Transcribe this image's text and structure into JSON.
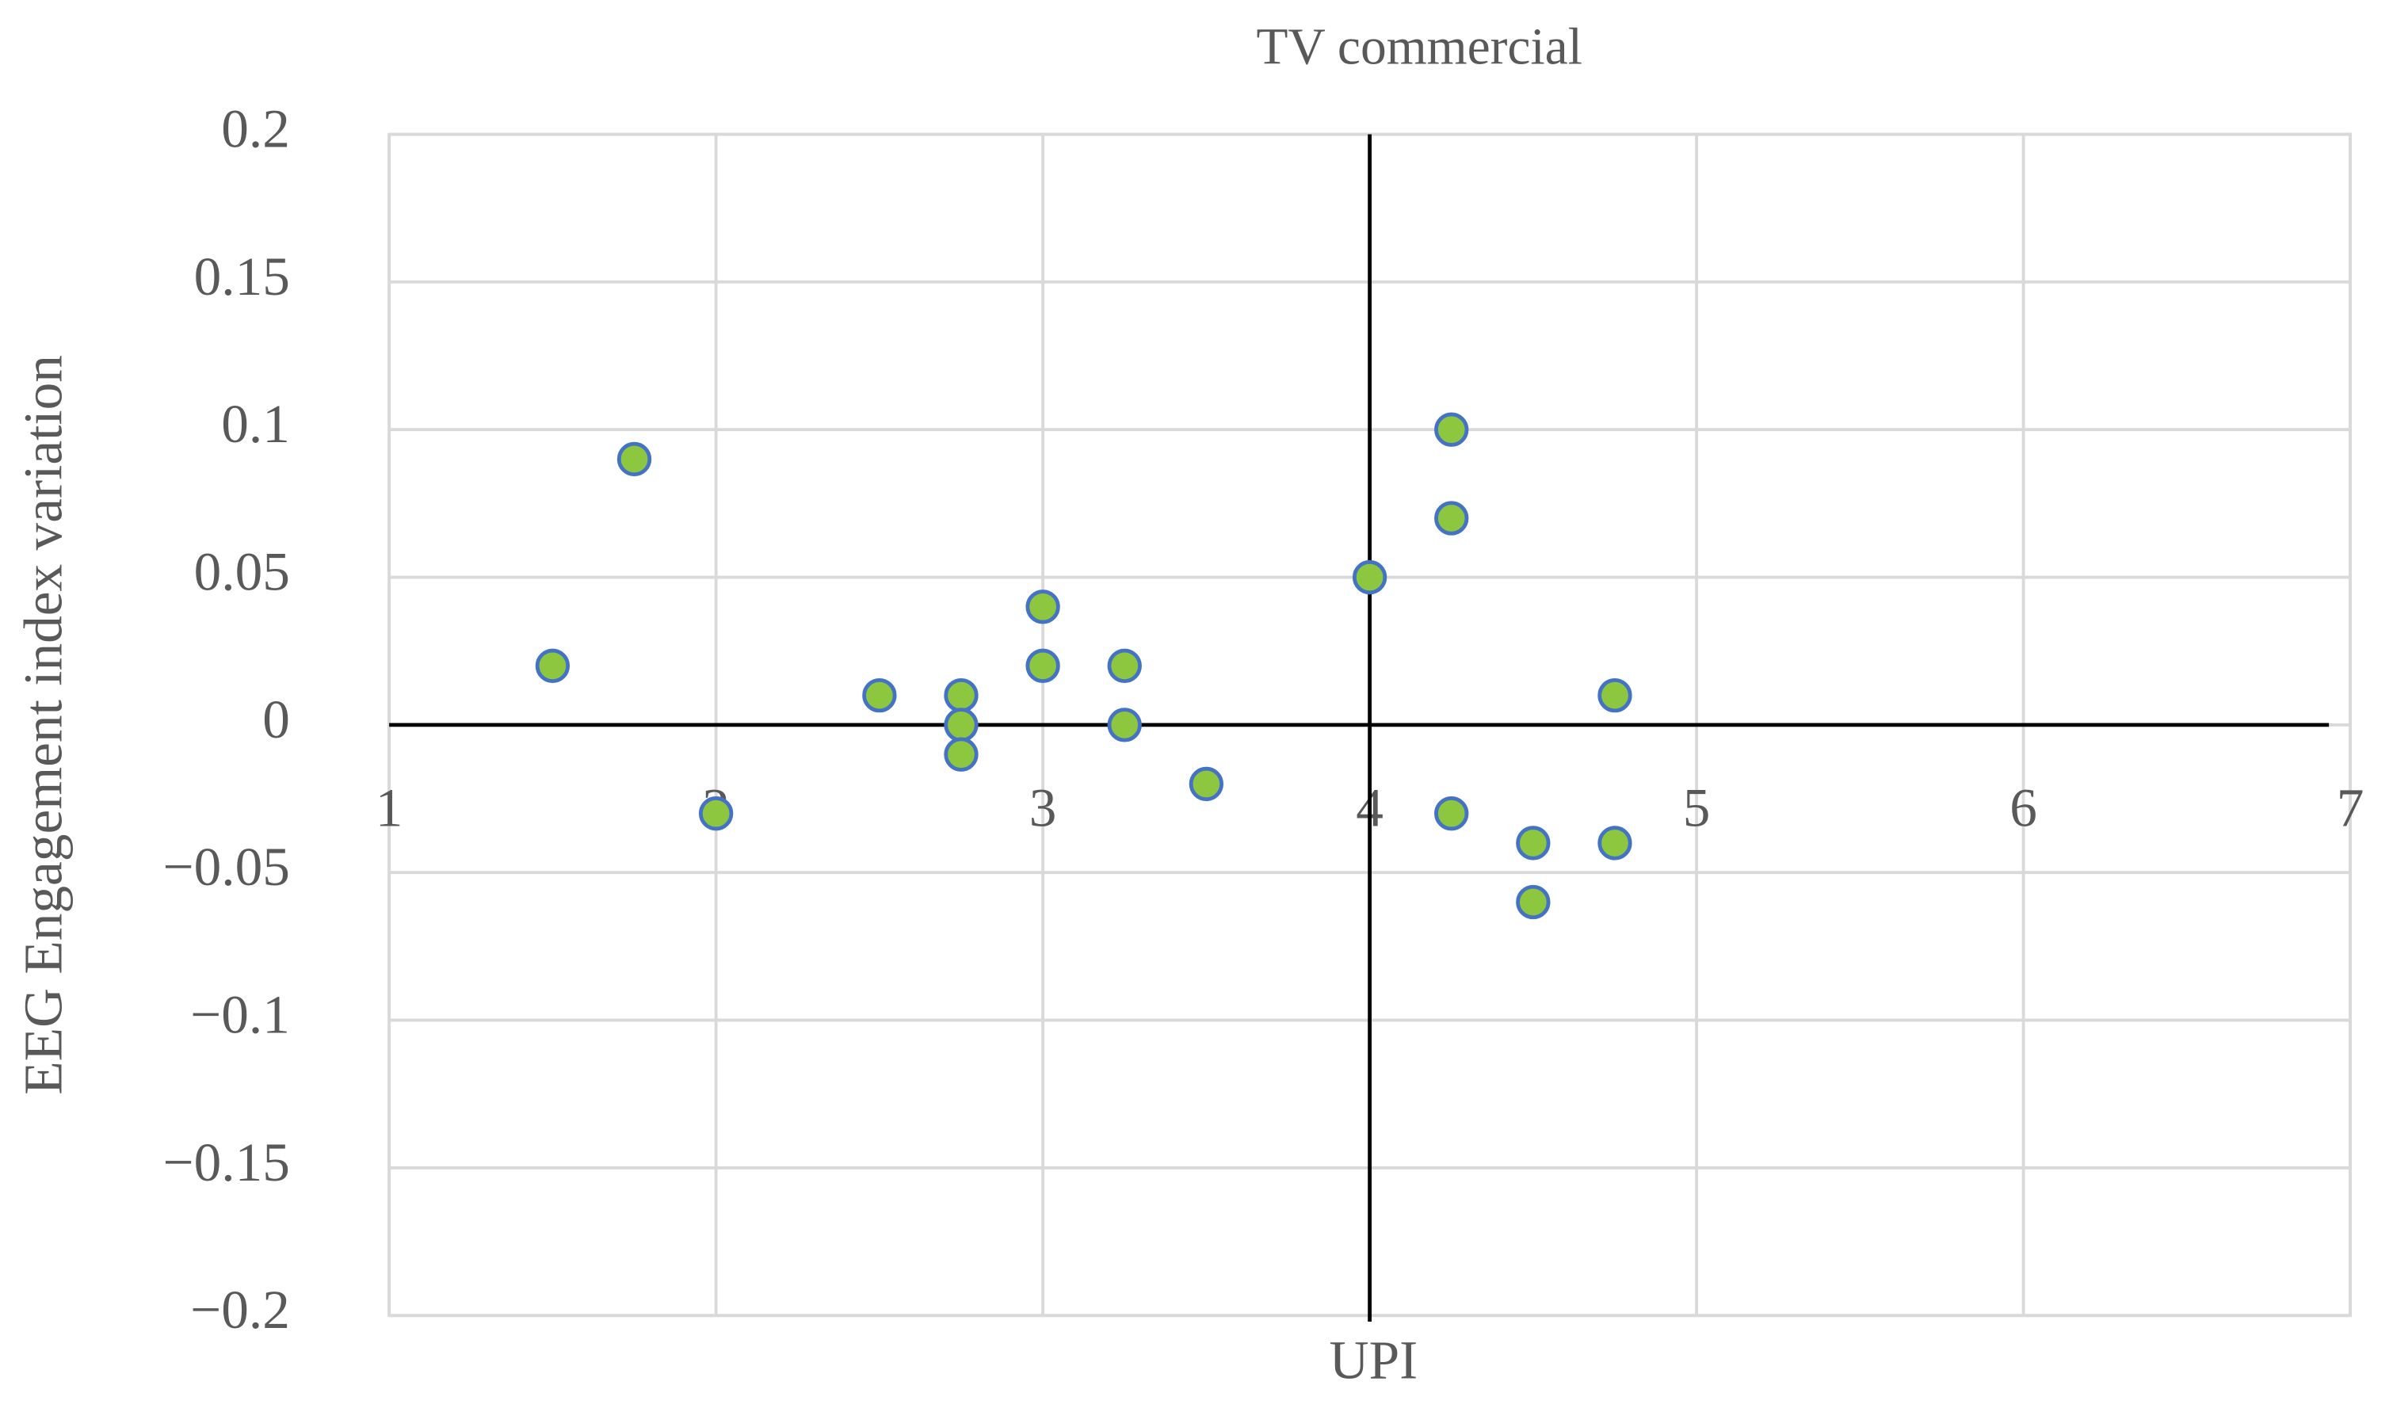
{
  "chart_data": {
    "type": "scatter",
    "title": "TV commercial",
    "x_label": "UPI",
    "y_label": "EEG Engagement index variation",
    "x": [
      1.5,
      1.75,
      2,
      2.5,
      2.75,
      2.75,
      2.75,
      3,
      3,
      3.25,
      3.25,
      3.5,
      4,
      4.25,
      4.25,
      4.25,
      4.5,
      4.5,
      4.75,
      4.75
    ],
    "values": [
      0.02,
      0.09,
      -0.03,
      0.01,
      0.01,
      0,
      -0.01,
      0.04,
      0.02,
      0.02,
      0,
      -0.02,
      0.05,
      0.1,
      0.07,
      -0.03,
      -0.04,
      -0.06,
      0.01,
      -0.04
    ],
    "color": "#8dc63f",
    "edge_color": "#4472c4",
    "xlim": [
      1,
      7
    ],
    "ylim": [
      -0.2,
      0.2
    ],
    "xticks": [
      1,
      2,
      3,
      4,
      5,
      6,
      7
    ],
    "yticks": [
      {
        "value": -0.2,
        "label": "−0.2"
      },
      {
        "value": -0.15,
        "label": "−0.15"
      },
      {
        "value": -0.1,
        "label": "−0.1"
      },
      {
        "value": -0.05,
        "label": "−0.05"
      },
      0,
      0.05,
      0.1,
      0.15,
      0.2
    ],
    "x_axis_at": 0,
    "y_axis_at": 4,
    "grid": true
  }
}
